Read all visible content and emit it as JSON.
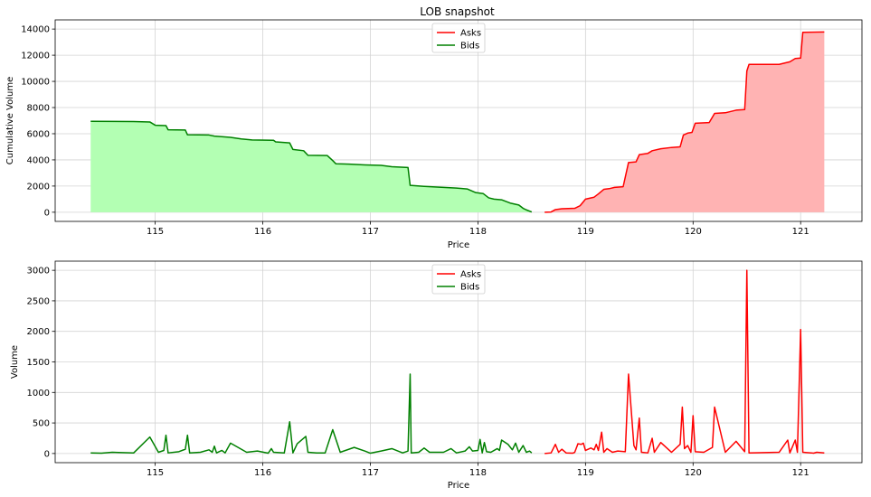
{
  "chart_data": [
    {
      "type": "area",
      "title": "LOB snapshot",
      "xlabel": "Price",
      "ylabel": "Cumulative Volume",
      "xlim": [
        114.07,
        121.57
      ],
      "ylim": [
        -700,
        14700
      ],
      "x_ticks": [
        115,
        116,
        117,
        118,
        119,
        120,
        121
      ],
      "y_ticks": [
        0,
        2000,
        4000,
        6000,
        8000,
        10000,
        12000,
        14000
      ],
      "grid": true,
      "legend_position": "upper center",
      "series": [
        {
          "name": "Asks",
          "color": "#ff0000",
          "fill": "#ffb3b3",
          "points": [
            [
              118.62,
              0
            ],
            [
              118.68,
              20
            ],
            [
              118.72,
              200
            ],
            [
              118.78,
              270
            ],
            [
              118.9,
              300
            ],
            [
              118.95,
              500
            ],
            [
              119.0,
              1000
            ],
            [
              119.08,
              1150
            ],
            [
              119.12,
              1400
            ],
            [
              119.17,
              1750
            ],
            [
              119.22,
              1800
            ],
            [
              119.27,
              1900
            ],
            [
              119.35,
              1950
            ],
            [
              119.4,
              3800
            ],
            [
              119.47,
              3850
            ],
            [
              119.5,
              4400
            ],
            [
              119.58,
              4500
            ],
            [
              119.62,
              4700
            ],
            [
              119.7,
              4850
            ],
            [
              119.8,
              4950
            ],
            [
              119.88,
              5000
            ],
            [
              119.91,
              5900
            ],
            [
              119.95,
              6050
            ],
            [
              119.99,
              6100
            ],
            [
              120.02,
              6800
            ],
            [
              120.15,
              6850
            ],
            [
              120.2,
              7550
            ],
            [
              120.3,
              7600
            ],
            [
              120.4,
              7800
            ],
            [
              120.48,
              7850
            ],
            [
              120.5,
              10800
            ],
            [
              120.52,
              11300
            ],
            [
              120.8,
              11300
            ],
            [
              120.9,
              11500
            ],
            [
              120.95,
              11750
            ],
            [
              121.0,
              11780
            ],
            [
              121.02,
              13750
            ],
            [
              121.22,
              13780
            ]
          ]
        },
        {
          "name": "Bids",
          "color": "#008000",
          "fill": "#b3ffb3",
          "points": [
            [
              114.4,
              6950
            ],
            [
              114.8,
              6930
            ],
            [
              114.95,
              6900
            ],
            [
              115.0,
              6650
            ],
            [
              115.1,
              6620
            ],
            [
              115.12,
              6300
            ],
            [
              115.28,
              6280
            ],
            [
              115.3,
              5920
            ],
            [
              115.5,
              5900
            ],
            [
              115.55,
              5820
            ],
            [
              115.7,
              5720
            ],
            [
              115.8,
              5600
            ],
            [
              115.9,
              5520
            ],
            [
              116.1,
              5500
            ],
            [
              116.12,
              5380
            ],
            [
              116.25,
              5300
            ],
            [
              116.28,
              4800
            ],
            [
              116.38,
              4700
            ],
            [
              116.42,
              4350
            ],
            [
              116.6,
              4330
            ],
            [
              116.65,
              3950
            ],
            [
              116.68,
              3700
            ],
            [
              116.8,
              3680
            ],
            [
              116.95,
              3620
            ],
            [
              117.1,
              3580
            ],
            [
              117.2,
              3480
            ],
            [
              117.35,
              3420
            ],
            [
              117.37,
              2050
            ],
            [
              117.5,
              1980
            ],
            [
              117.62,
              1920
            ],
            [
              117.8,
              1850
            ],
            [
              117.9,
              1780
            ],
            [
              117.98,
              1500
            ],
            [
              118.05,
              1420
            ],
            [
              118.1,
              1100
            ],
            [
              118.15,
              1000
            ],
            [
              118.22,
              950
            ],
            [
              118.3,
              700
            ],
            [
              118.38,
              550
            ],
            [
              118.42,
              300
            ],
            [
              118.45,
              180
            ],
            [
              118.5,
              20
            ]
          ]
        }
      ]
    },
    {
      "type": "line",
      "title": "",
      "xlabel": "Price",
      "ylabel": "Volume",
      "xlim": [
        114.07,
        121.57
      ],
      "ylim": [
        -150,
        3150
      ],
      "x_ticks": [
        115,
        116,
        117,
        118,
        119,
        120,
        121
      ],
      "y_ticks": [
        0,
        500,
        1000,
        1500,
        2000,
        2500,
        3000
      ],
      "grid": true,
      "legend_position": "upper center",
      "series": [
        {
          "name": "Asks",
          "color": "#ff0000",
          "points": [
            [
              118.62,
              0
            ],
            [
              118.68,
              10
            ],
            [
              118.72,
              150
            ],
            [
              118.75,
              20
            ],
            [
              118.78,
              70
            ],
            [
              118.82,
              10
            ],
            [
              118.88,
              5
            ],
            [
              118.9,
              20
            ],
            [
              118.93,
              160
            ],
            [
              118.96,
              150
            ],
            [
              118.98,
              170
            ],
            [
              119.0,
              50
            ],
            [
              119.05,
              90
            ],
            [
              119.08,
              60
            ],
            [
              119.1,
              150
            ],
            [
              119.12,
              50
            ],
            [
              119.15,
              350
            ],
            [
              119.17,
              20
            ],
            [
              119.2,
              80
            ],
            [
              119.25,
              20
            ],
            [
              119.3,
              40
            ],
            [
              119.37,
              30
            ],
            [
              119.4,
              1300
            ],
            [
              119.45,
              130
            ],
            [
              119.47,
              60
            ],
            [
              119.5,
              580
            ],
            [
              119.52,
              20
            ],
            [
              119.58,
              10
            ],
            [
              119.62,
              250
            ],
            [
              119.64,
              20
            ],
            [
              119.7,
              180
            ],
            [
              119.8,
              20
            ],
            [
              119.88,
              150
            ],
            [
              119.9,
              760
            ],
            [
              119.92,
              80
            ],
            [
              119.95,
              130
            ],
            [
              119.98,
              20
            ],
            [
              120.0,
              620
            ],
            [
              120.02,
              30
            ],
            [
              120.1,
              20
            ],
            [
              120.18,
              100
            ],
            [
              120.2,
              760
            ],
            [
              120.3,
              20
            ],
            [
              120.4,
              200
            ],
            [
              120.48,
              30
            ],
            [
              120.5,
              3000
            ],
            [
              120.52,
              10
            ],
            [
              120.8,
              20
            ],
            [
              120.88,
              220
            ],
            [
              120.9,
              10
            ],
            [
              120.95,
              220
            ],
            [
              120.97,
              20
            ],
            [
              121.0,
              2030
            ],
            [
              121.02,
              20
            ],
            [
              121.1,
              10
            ],
            [
              121.12,
              5
            ],
            [
              121.15,
              20
            ],
            [
              121.22,
              10
            ]
          ]
        },
        {
          "name": "Bids",
          "color": "#008000",
          "points": [
            [
              114.4,
              10
            ],
            [
              114.5,
              5
            ],
            [
              114.6,
              20
            ],
            [
              114.8,
              10
            ],
            [
              114.95,
              270
            ],
            [
              115.03,
              20
            ],
            [
              115.08,
              50
            ],
            [
              115.1,
              300
            ],
            [
              115.12,
              10
            ],
            [
              115.22,
              30
            ],
            [
              115.28,
              70
            ],
            [
              115.3,
              300
            ],
            [
              115.32,
              10
            ],
            [
              115.42,
              20
            ],
            [
              115.5,
              60
            ],
            [
              115.53,
              20
            ],
            [
              115.55,
              120
            ],
            [
              115.57,
              10
            ],
            [
              115.62,
              50
            ],
            [
              115.65,
              10
            ],
            [
              115.7,
              170
            ],
            [
              115.75,
              120
            ],
            [
              115.85,
              20
            ],
            [
              115.95,
              40
            ],
            [
              116.05,
              5
            ],
            [
              116.08,
              80
            ],
            [
              116.1,
              20
            ],
            [
              116.2,
              10
            ],
            [
              116.25,
              520
            ],
            [
              116.28,
              10
            ],
            [
              116.32,
              160
            ],
            [
              116.4,
              280
            ],
            [
              116.42,
              20
            ],
            [
              116.5,
              10
            ],
            [
              116.58,
              10
            ],
            [
              116.65,
              390
            ],
            [
              116.72,
              20
            ],
            [
              116.85,
              100
            ],
            [
              116.95,
              40
            ],
            [
              117.0,
              5
            ],
            [
              117.1,
              40
            ],
            [
              117.2,
              80
            ],
            [
              117.3,
              10
            ],
            [
              117.35,
              40
            ],
            [
              117.37,
              1300
            ],
            [
              117.38,
              10
            ],
            [
              117.45,
              20
            ],
            [
              117.5,
              90
            ],
            [
              117.55,
              20
            ],
            [
              117.68,
              20
            ],
            [
              117.75,
              80
            ],
            [
              117.8,
              10
            ],
            [
              117.88,
              40
            ],
            [
              117.92,
              110
            ],
            [
              117.95,
              40
            ],
            [
              118.0,
              50
            ],
            [
              118.02,
              230
            ],
            [
              118.04,
              10
            ],
            [
              118.06,
              180
            ],
            [
              118.08,
              30
            ],
            [
              118.12,
              20
            ],
            [
              118.18,
              80
            ],
            [
              118.2,
              50
            ],
            [
              118.22,
              220
            ],
            [
              118.28,
              150
            ],
            [
              118.32,
              60
            ],
            [
              118.35,
              170
            ],
            [
              118.38,
              20
            ],
            [
              118.42,
              130
            ],
            [
              118.45,
              20
            ],
            [
              118.48,
              40
            ],
            [
              118.5,
              10
            ]
          ]
        }
      ]
    }
  ]
}
